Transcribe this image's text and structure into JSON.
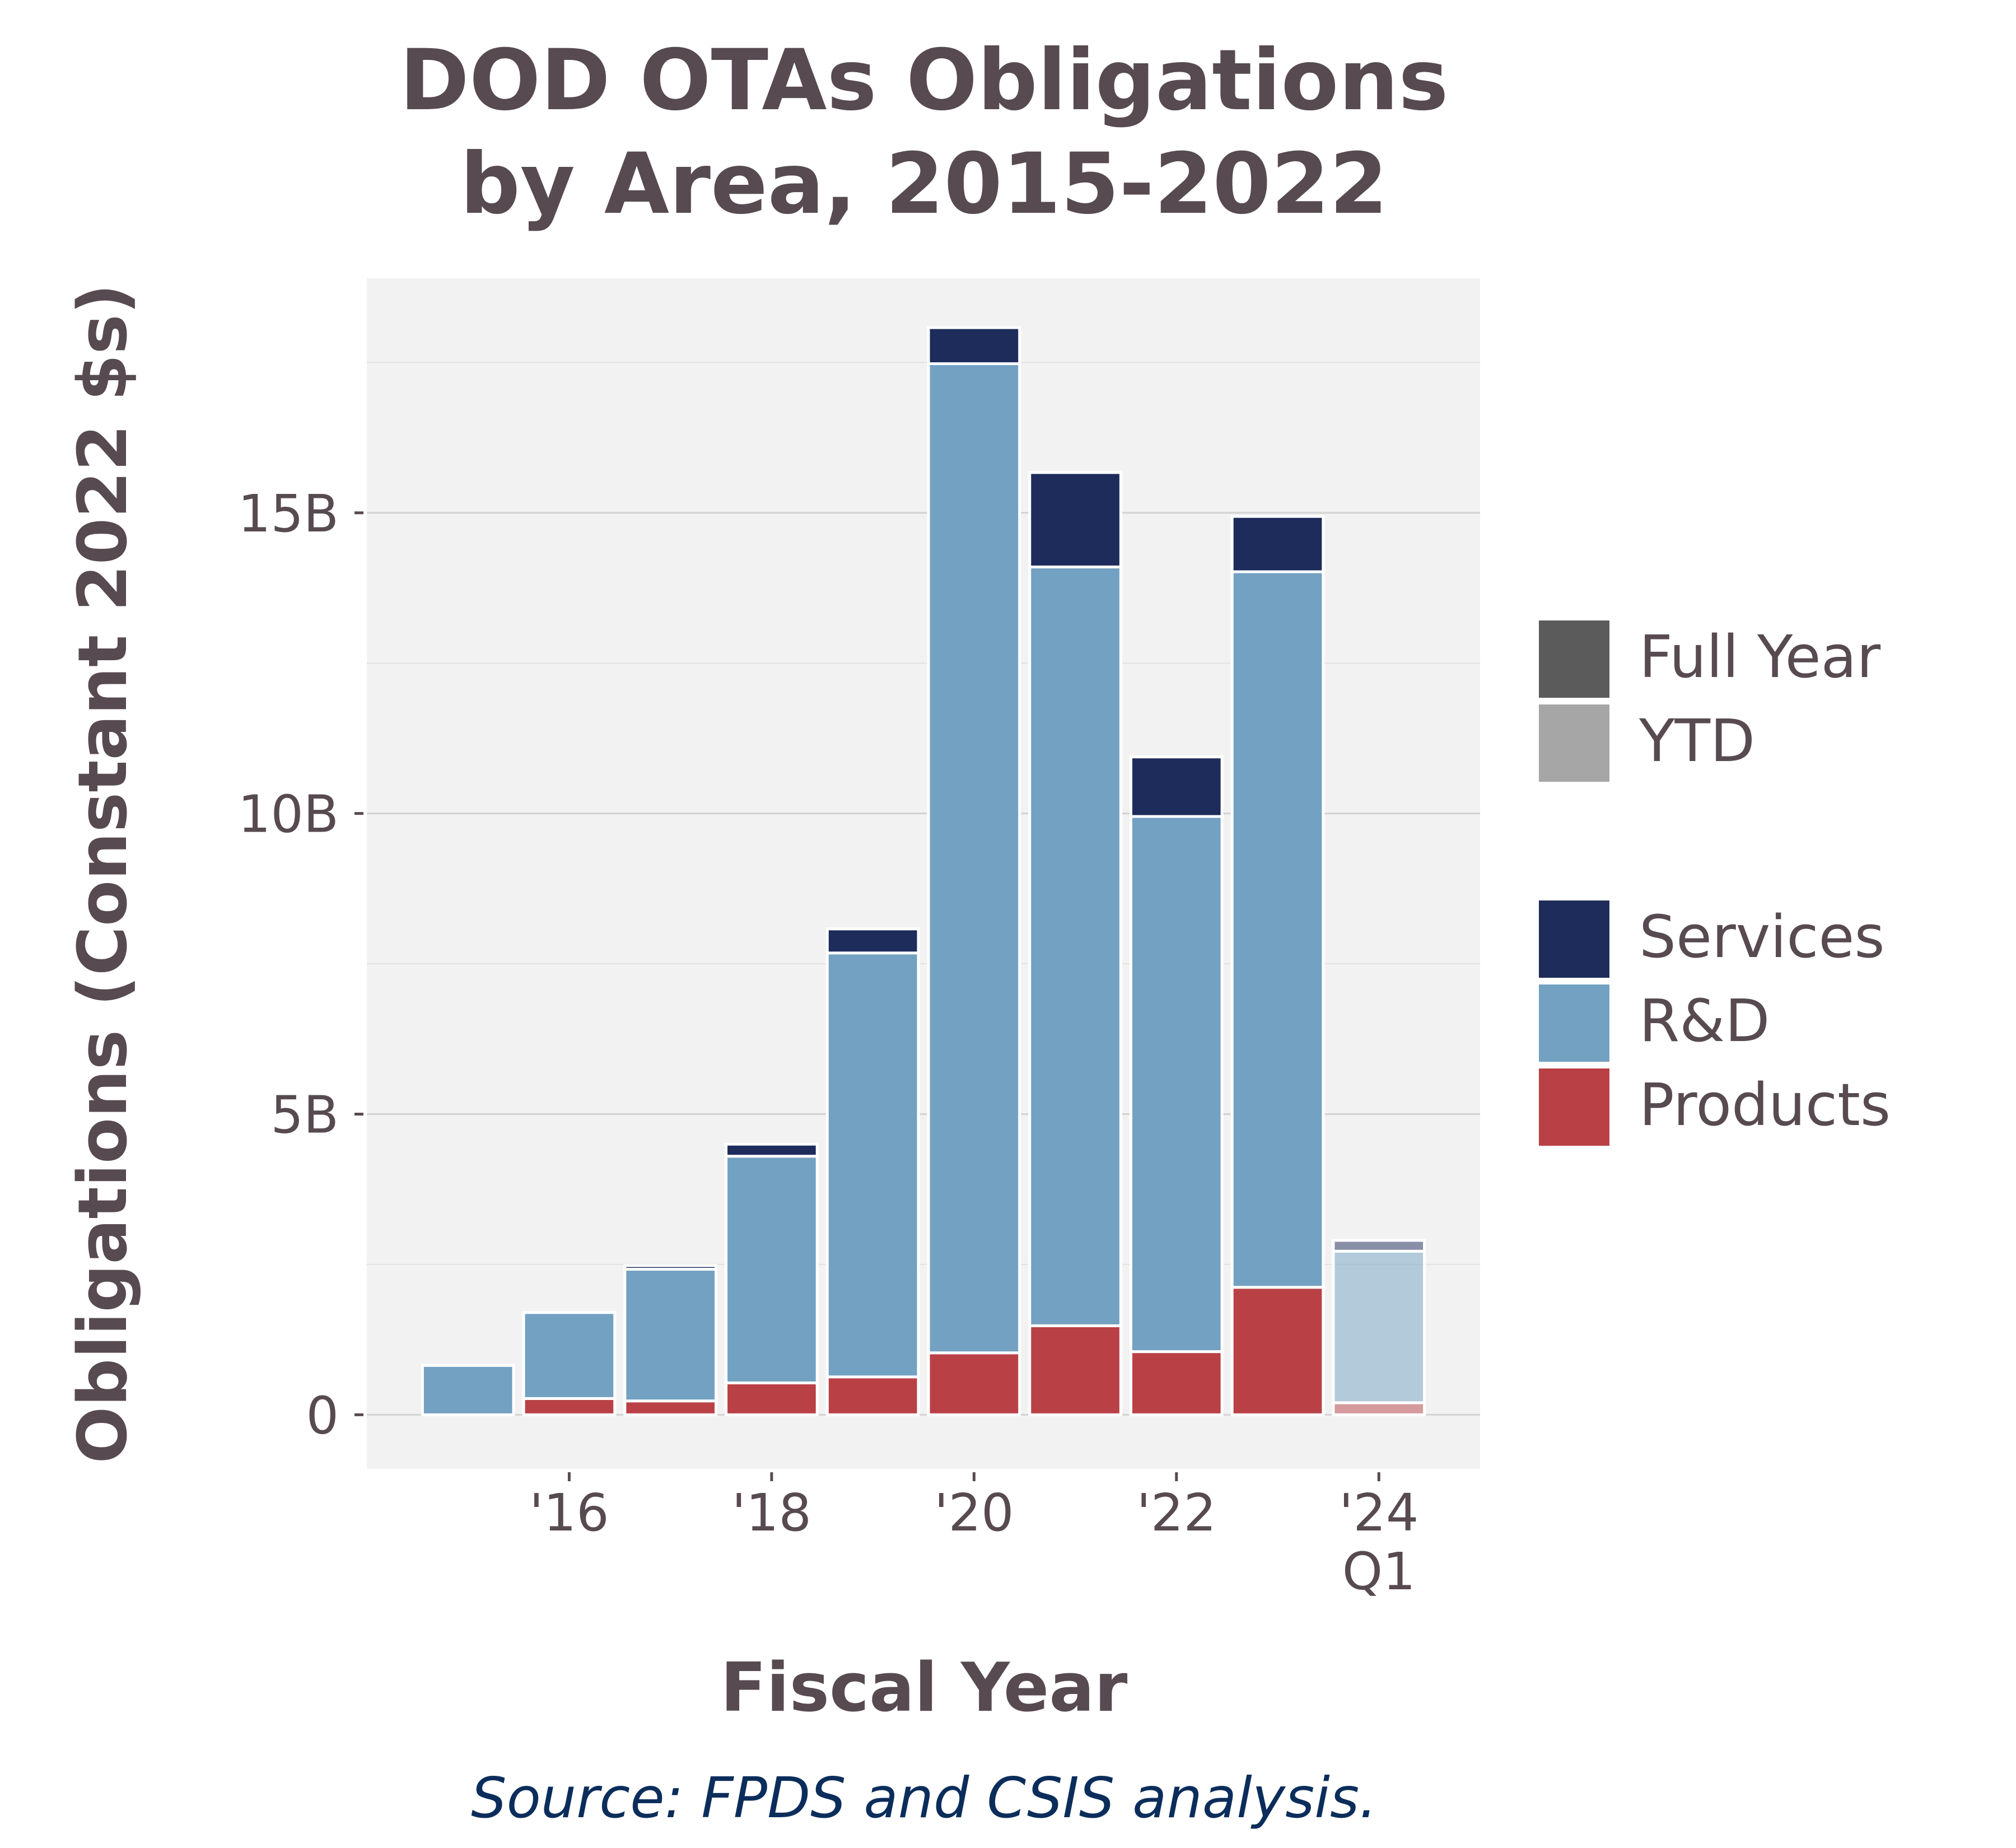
{
  "chart_data": {
    "type": "bar",
    "stacked": true,
    "title_lines": [
      "DOD OTAs Obligations",
      "by Area, 2015-2022"
    ],
    "xlabel": "Fiscal Year",
    "ylabel": "Obligations (Constant 2022 $s)",
    "source": "Source: FPDS and CSIS analysis.",
    "categories": [
      2015,
      2016,
      2017,
      2018,
      2019,
      2020,
      2021,
      2022,
      2023,
      2024
    ],
    "period": [
      "Full Year",
      "Full Year",
      "Full Year",
      "Full Year",
      "Full Year",
      "Full Year",
      "Full Year",
      "Full Year",
      "Full Year",
      "YTD"
    ],
    "x_ticks": [
      {
        "value": 2016,
        "label": "'16"
      },
      {
        "value": 2018,
        "label": "'18"
      },
      {
        "value": 2020,
        "label": "'20"
      },
      {
        "value": 2022,
        "label": "'22"
      },
      {
        "value": 2024,
        "label": "'24",
        "label2": "Q1"
      }
    ],
    "y_ticks": [
      {
        "value": 0,
        "label": "0"
      },
      {
        "value": 5,
        "label": "5B"
      },
      {
        "value": 10,
        "label": "10B"
      },
      {
        "value": 15,
        "label": "15B"
      }
    ],
    "y_minor_gridlines": [
      2.5,
      7.5,
      12.5,
      17.5
    ],
    "xlim": [
      2014.0,
      2025.0
    ],
    "ylim": [
      -0.9,
      18.9
    ],
    "y_unit": "billions",
    "series": [
      {
        "name": "Products",
        "color": "#b94146",
        "values": [
          0.0,
          0.27,
          0.23,
          0.53,
          0.63,
          1.03,
          1.48,
          1.05,
          2.12,
          0.2
        ]
      },
      {
        "name": "R&D",
        "color": "#73a1c2",
        "values": [
          0.82,
          1.43,
          2.19,
          3.77,
          7.05,
          16.45,
          12.62,
          8.9,
          11.9,
          2.52
        ]
      },
      {
        "name": "Services",
        "color": "#1e2c5b",
        "values": [
          0.0,
          0.0,
          0.06,
          0.2,
          0.4,
          0.6,
          1.57,
          0.99,
          0.92,
          0.18
        ]
      }
    ],
    "legend": {
      "placement": "right",
      "period_entries": [
        {
          "label": "Full Year",
          "color": "#5b5b5b"
        },
        {
          "label": "YTD",
          "color": "#a6a6a6"
        }
      ],
      "series_entries": [
        {
          "label": "Services",
          "color": "#1e2c5b"
        },
        {
          "label": "R&D",
          "color": "#73a1c2"
        },
        {
          "label": "Products",
          "color": "#b94146"
        }
      ]
    },
    "grid": true,
    "panel_background": "#f2f2f2",
    "ytd_opacity": 0.5
  }
}
